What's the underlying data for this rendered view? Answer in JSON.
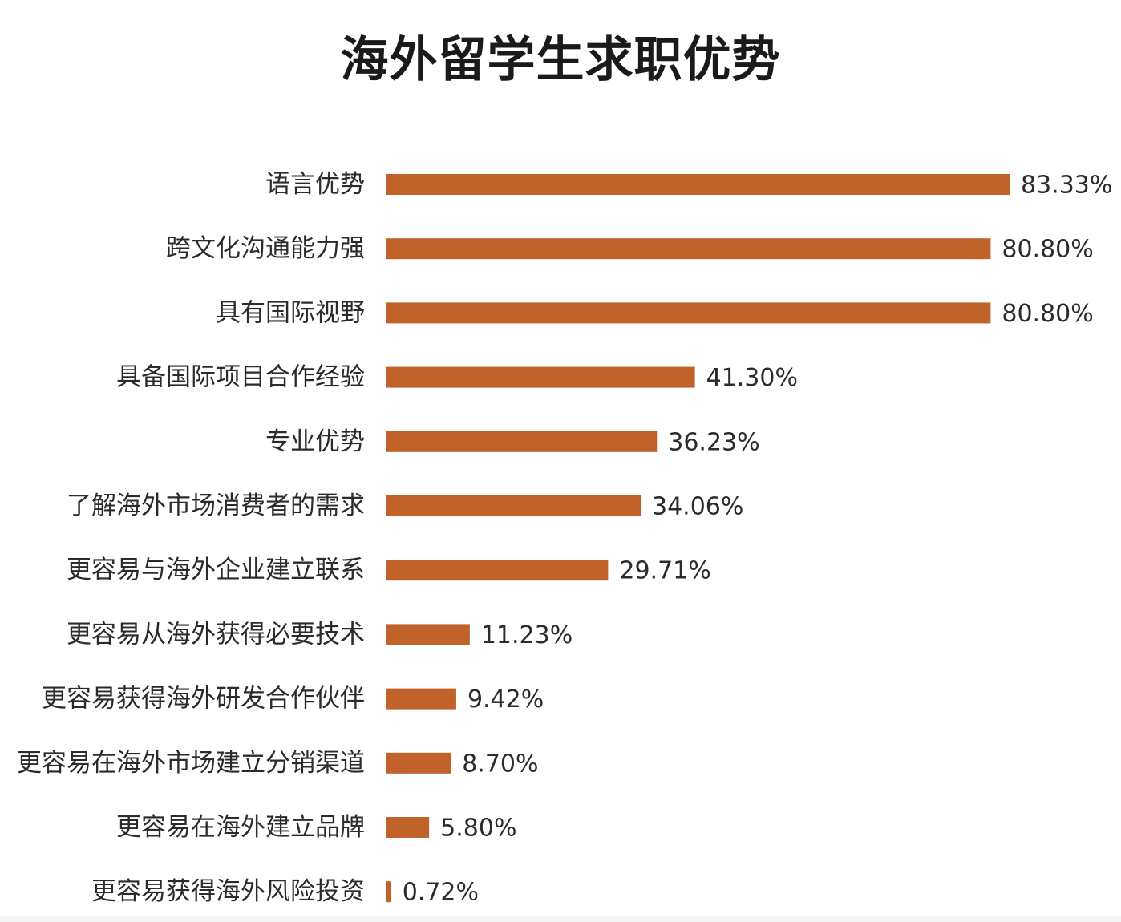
{
  "chart_data": {
    "type": "bar",
    "orientation": "horizontal",
    "title": "海外留学生求职优势",
    "categories": [
      "语言优势",
      "跨文化沟通能力强",
      "具有国际视野",
      "具备国际项目合作经验",
      "专业优势",
      "了解海外市场消费者的需求",
      "更容易与海外企业建立联系",
      "更容易从海外获得必要技术",
      "更容易获得海外研发合作伙伴",
      "更容易在海外市场建立分销渠道",
      "更容易在海外建立品牌",
      "更容易获得海外风险投资"
    ],
    "values": [
      83.33,
      80.8,
      80.8,
      41.3,
      36.23,
      34.06,
      29.71,
      11.23,
      9.42,
      8.7,
      5.8,
      0.72
    ],
    "value_labels": [
      "83.33%",
      "80.80%",
      "80.80%",
      "41.30%",
      "36.23%",
      "34.06%",
      "29.71%",
      "11.23%",
      "9.42%",
      "8.70%",
      "5.80%",
      "0.72%"
    ],
    "unit": "%",
    "xlim": [
      0,
      83.33
    ],
    "bar_color": "#c0622a",
    "grid": false,
    "legend": "none",
    "xlabel": "",
    "ylabel": ""
  }
}
